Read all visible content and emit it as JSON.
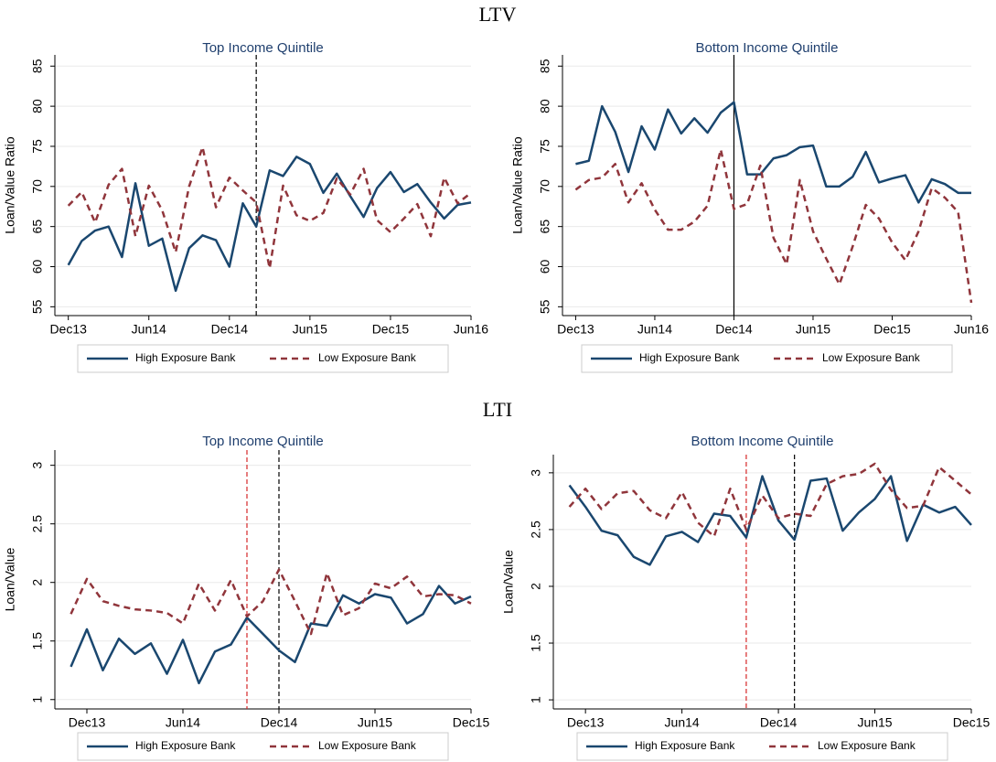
{
  "headings": [
    "LTV",
    "LTI"
  ],
  "chart_data": [
    {
      "type": "line",
      "title": "Top Income Quintile",
      "ylabel": "Loan/Value Ratio",
      "x": [
        "2013-12",
        "2014-01",
        "2014-02",
        "2014-03",
        "2014-04",
        "2014-05",
        "2014-06",
        "2014-07",
        "2014-08",
        "2014-09",
        "2014-10",
        "2014-11",
        "2014-12",
        "2015-01",
        "2015-02",
        "2015-03",
        "2015-04",
        "2015-05",
        "2015-06",
        "2015-07",
        "2015-08",
        "2015-09",
        "2015-10",
        "2015-11",
        "2015-12",
        "2016-01",
        "2016-02",
        "2016-03",
        "2016-04",
        "2016-05",
        "2016-06"
      ],
      "series": [
        {
          "name": "High Exposure Bank",
          "color": "#1a476f",
          "style": "solid",
          "values": [
            60.2,
            63.2,
            64.5,
            65,
            61.2,
            70.4,
            62.6,
            63.5,
            57,
            62.3,
            63.9,
            63.3,
            60,
            67.9,
            65,
            72,
            71.3,
            73.7,
            72.8,
            69.2,
            71.6,
            68.8,
            66.2,
            69.8,
            71.8,
            69.3,
            70.3,
            68,
            66,
            67.7,
            68
          ]
        },
        {
          "name": "Low Exposure Bank",
          "color": "#90353b",
          "style": "dashed",
          "values": [
            67.6,
            69.3,
            65.5,
            70.2,
            72.2,
            63.8,
            70.1,
            67,
            61.8,
            70,
            74.9,
            67.4,
            71.1,
            69.5,
            68,
            59.8,
            70.1,
            66.4,
            65.7,
            66.7,
            71,
            69,
            72.2,
            65.8,
            64.3,
            66,
            67.8,
            63.8,
            71.1,
            67.9,
            69.2
          ]
        }
      ],
      "xlim": [
        "2013-11",
        "2016-06"
      ],
      "xticks": [
        {
          "value": "2013-12",
          "label": "Dec13"
        },
        {
          "value": "2014-06",
          "label": "Jun14"
        },
        {
          "value": "2014-12",
          "label": "Dec14"
        },
        {
          "value": "2015-06",
          "label": "Jun15"
        },
        {
          "value": "2015-12",
          "label": "Dec15"
        },
        {
          "value": "2016-06",
          "label": "Jun16"
        }
      ],
      "ylim": [
        53.9,
        86.4
      ],
      "yticks": [
        55,
        60,
        65,
        70,
        75,
        80,
        85
      ],
      "grid": true,
      "legend": "bottom",
      "vlines": [
        {
          "x": "2015-02",
          "color": "#000000",
          "style": "dashed"
        }
      ]
    },
    {
      "type": "line",
      "title": "Bottom Income Quintile",
      "ylabel": "Loan/Value Ratio",
      "x": [
        "2013-12",
        "2014-01",
        "2014-02",
        "2014-03",
        "2014-04",
        "2014-05",
        "2014-06",
        "2014-07",
        "2014-08",
        "2014-09",
        "2014-10",
        "2014-11",
        "2014-12",
        "2015-01",
        "2015-02",
        "2015-03",
        "2015-04",
        "2015-05",
        "2015-06",
        "2015-07",
        "2015-08",
        "2015-09",
        "2015-10",
        "2015-11",
        "2015-12",
        "2016-01",
        "2016-02",
        "2016-03",
        "2016-04",
        "2016-05",
        "2016-06"
      ],
      "series": [
        {
          "name": "High Exposure Bank",
          "color": "#1a476f",
          "style": "solid",
          "values": [
            72.8,
            73.2,
            80,
            76.8,
            71.8,
            77.5,
            74.6,
            79.6,
            76.6,
            78.5,
            76.7,
            79.2,
            80.5,
            71.5,
            71.5,
            73.5,
            73.9,
            74.9,
            75.1,
            70,
            70,
            71.2,
            74.3,
            70.5,
            71,
            71.4,
            68,
            70.9,
            70.3,
            69.2,
            69.2
          ]
        },
        {
          "name": "Low Exposure Bank",
          "color": "#90353b",
          "style": "dashed",
          "values": [
            69.6,
            70.8,
            71.1,
            72.8,
            68,
            70.4,
            67.1,
            64.6,
            64.6,
            65.6,
            67.6,
            74.6,
            67.2,
            67.8,
            72.6,
            63.6,
            60.3,
            70.8,
            64.4,
            61,
            57.8,
            62.5,
            67.7,
            66,
            63,
            60.8,
            64.4,
            69.8,
            68.6,
            66.8,
            55.5
          ]
        }
      ],
      "xlim": [
        "2013-11",
        "2016-06"
      ],
      "xticks": [
        {
          "value": "2013-12",
          "label": "Dec13"
        },
        {
          "value": "2014-06",
          "label": "Jun14"
        },
        {
          "value": "2014-12",
          "label": "Dec14"
        },
        {
          "value": "2015-06",
          "label": "Jun15"
        },
        {
          "value": "2015-12",
          "label": "Dec15"
        },
        {
          "value": "2016-06",
          "label": "Jun16"
        }
      ],
      "ylim": [
        53.9,
        86.4
      ],
      "yticks": [
        55,
        60,
        65,
        70,
        75,
        80,
        85
      ],
      "grid": true,
      "legend": "bottom",
      "vlines": [
        {
          "x": "2014-12",
          "color": "#000000",
          "style": "solid"
        }
      ]
    },
    {
      "type": "line",
      "title": "Top Income Quintile",
      "ylabel": "Loan/Value",
      "x": [
        "2013-11",
        "2013-12",
        "2014-01",
        "2014-02",
        "2014-03",
        "2014-04",
        "2014-05",
        "2014-06",
        "2014-07",
        "2014-08",
        "2014-09",
        "2014-10",
        "2014-11",
        "2014-12",
        "2015-01",
        "2015-02",
        "2015-03",
        "2015-04",
        "2015-05",
        "2015-06",
        "2015-07",
        "2015-08",
        "2015-09",
        "2015-10",
        "2015-11",
        "2015-12"
      ],
      "series": [
        {
          "name": "High Exposure Bank",
          "color": "#1a476f",
          "style": "solid",
          "values": [
            1.28,
            1.6,
            1.25,
            1.52,
            1.39,
            1.48,
            1.22,
            1.51,
            1.14,
            1.41,
            1.47,
            1.7,
            1.56,
            1.42,
            1.32,
            1.65,
            1.63,
            1.89,
            1.82,
            1.9,
            1.87,
            1.65,
            1.73,
            1.97,
            1.82,
            1.88
          ]
        },
        {
          "name": "Low Exposure Bank",
          "color": "#90353b",
          "style": "dashed",
          "values": [
            1.73,
            2.03,
            1.84,
            1.8,
            1.77,
            1.76,
            1.74,
            1.65,
            1.99,
            1.76,
            2.02,
            1.71,
            1.84,
            2.11,
            1.84,
            1.56,
            2.08,
            1.72,
            1.78,
            1.99,
            1.95,
            2.05,
            1.88,
            1.9,
            1.89,
            1.82
          ]
        }
      ],
      "xlim": [
        "2013-10",
        "2015-12"
      ],
      "xticks": [
        {
          "value": "2013-12",
          "label": "Dec13"
        },
        {
          "value": "2014-06",
          "label": "Jun14"
        },
        {
          "value": "2014-12",
          "label": "Dec14"
        },
        {
          "value": "2015-06",
          "label": "Jun15"
        },
        {
          "value": "2015-12",
          "label": "Dec15"
        }
      ],
      "ylim": [
        0.92,
        3.13
      ],
      "yticks": [
        1,
        1.5,
        2,
        2.5,
        3
      ],
      "grid": true,
      "legend": "bottom",
      "vlines": [
        {
          "x": "2014-10",
          "color": "#d62728",
          "style": "dashed"
        },
        {
          "x": "2014-12",
          "color": "#000000",
          "style": "dashed"
        }
      ]
    },
    {
      "type": "line",
      "title": "Bottom Income Quintile",
      "ylabel": "Loan/Value",
      "x": [
        "2013-11",
        "2013-12",
        "2014-01",
        "2014-02",
        "2014-03",
        "2014-04",
        "2014-05",
        "2014-06",
        "2014-07",
        "2014-08",
        "2014-09",
        "2014-10",
        "2014-11",
        "2014-12",
        "2015-01",
        "2015-02",
        "2015-03",
        "2015-04",
        "2015-05",
        "2015-06",
        "2015-07",
        "2015-08",
        "2015-09",
        "2015-10",
        "2015-11",
        "2015-12"
      ],
      "series": [
        {
          "name": "High Exposure Bank",
          "color": "#1a476f",
          "style": "solid",
          "values": [
            2.89,
            2.7,
            2.49,
            2.45,
            2.26,
            2.19,
            2.44,
            2.48,
            2.39,
            2.64,
            2.62,
            2.43,
            2.97,
            2.58,
            2.41,
            2.93,
            2.95,
            2.49,
            2.65,
            2.77,
            2.97,
            2.4,
            2.72,
            2.65,
            2.7,
            2.54
          ]
        },
        {
          "name": "Low Exposure Bank",
          "color": "#90353b",
          "style": "dashed",
          "values": [
            2.7,
            2.86,
            2.68,
            2.82,
            2.84,
            2.67,
            2.6,
            2.83,
            2.56,
            2.44,
            2.86,
            2.5,
            2.8,
            2.6,
            2.64,
            2.62,
            2.9,
            2.97,
            2.99,
            3.08,
            2.85,
            2.69,
            2.71,
            3.05,
            2.93,
            2.81
          ]
        }
      ],
      "xlim": [
        "2013-10",
        "2015-12"
      ],
      "xticks": [
        {
          "value": "2013-12",
          "label": "Dec13"
        },
        {
          "value": "2014-06",
          "label": "Jun14"
        },
        {
          "value": "2014-12",
          "label": "Dec14"
        },
        {
          "value": "2015-06",
          "label": "Jun15"
        },
        {
          "value": "2015-12",
          "label": "Dec15"
        }
      ],
      "ylim": [
        0.92,
        3.16
      ],
      "yticks": [
        1,
        1.5,
        2,
        2.5,
        3
      ],
      "grid": true,
      "legend": "bottom",
      "vlines": [
        {
          "x": "2014-10",
          "color": "#d62728",
          "style": "dashed"
        },
        {
          "x": "2015-01",
          "color": "#000000",
          "style": "dashed"
        }
      ]
    }
  ]
}
